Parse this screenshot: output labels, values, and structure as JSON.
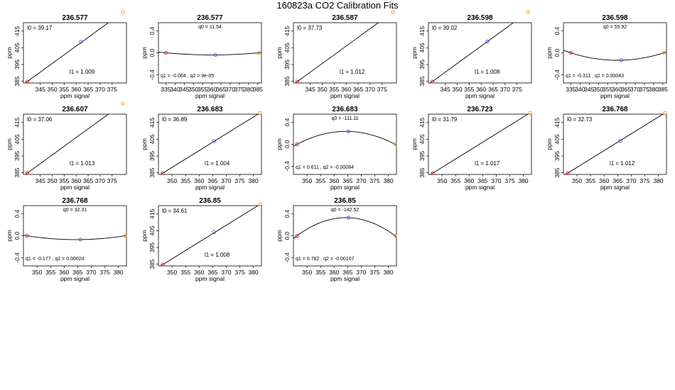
{
  "figure_title": "160823a   CO2 Calibration Fits",
  "chart_data": [
    {
      "type": "line",
      "fit": "linear",
      "title": "236.577",
      "xlabel": "ppm signal",
      "ylabel": "ppm",
      "xlim": [
        338,
        381
      ],
      "xticks": [
        345,
        350,
        355,
        360,
        365,
        370,
        375
      ],
      "ylim": [
        384,
        420
      ],
      "yticks": [
        385,
        395,
        405,
        415
      ],
      "points": [
        {
          "x": 339.6,
          "y": 384.8,
          "color": "#e41a1c"
        },
        {
          "x": 362.0,
          "y": 408.5,
          "color": "#7b3fe4"
        },
        {
          "x": 379.5,
          "y": 426.3,
          "color": "#ff8c00"
        }
      ],
      "labels": [
        {
          "id": "l0",
          "text": "l0 =  39.17",
          "pos": "top-left"
        },
        {
          "id": "l1",
          "text": "l1 =  1.009",
          "pos": "bottom-center"
        }
      ]
    },
    {
      "type": "line",
      "fit": "quadratic",
      "title": "236.577",
      "xlabel": "ppm signal",
      "ylabel": "ppm",
      "xlim": [
        331,
        387
      ],
      "xticks": [
        335,
        340,
        345,
        350,
        355,
        360,
        365,
        370,
        375,
        380,
        385
      ],
      "ylim": [
        -0.55,
        0.55
      ],
      "yticks": [
        -0.4,
        0.0,
        0.4
      ],
      "points": [
        {
          "x": 335.0,
          "y": 0.0,
          "color": "#e41a1c"
        },
        {
          "x": 362.0,
          "y": -0.038,
          "color": "#7b3fe4"
        },
        {
          "x": 385.5,
          "y": 0.0,
          "color": "#ff8c00"
        }
      ],
      "labels": [
        {
          "id": "q0",
          "text": "q0 =  11.54",
          "pos": "top-center"
        },
        {
          "id": "q12",
          "text": "q1 =  -0.064 , q2 =  9e-05",
          "pos": "bottom-left"
        }
      ]
    },
    {
      "type": "line",
      "fit": "linear",
      "title": "236.587",
      "xlabel": "ppm signal",
      "ylabel": "ppm",
      "xlim": [
        338,
        381
      ],
      "xticks": [
        345,
        350,
        355,
        360,
        365,
        370,
        375
      ],
      "ylim": [
        384,
        420
      ],
      "yticks": [
        385,
        395,
        405,
        415
      ],
      "points": [
        {
          "x": 339.6,
          "y": 384.8,
          "color": "#e41a1c"
        },
        {
          "x": 379.5,
          "y": 426.3,
          "color": "#ff8c00"
        }
      ],
      "labels": [
        {
          "id": "l0",
          "text": "l0 =  37.73",
          "pos": "top-left"
        },
        {
          "id": "l1",
          "text": "l1 =  1.012",
          "pos": "bottom-center"
        }
      ]
    },
    {
      "type": "line",
      "fit": "linear",
      "title": "236.598",
      "xlabel": "ppm signal",
      "ylabel": "ppm",
      "xlim": [
        338,
        381
      ],
      "xticks": [
        345,
        350,
        355,
        360,
        365,
        370,
        375
      ],
      "ylim": [
        384,
        420
      ],
      "yticks": [
        385,
        395,
        405,
        415
      ],
      "points": [
        {
          "x": 339.6,
          "y": 384.8,
          "color": "#e41a1c"
        },
        {
          "x": 362.6,
          "y": 408.8,
          "color": "#7b3fe4"
        },
        {
          "x": 379.5,
          "y": 426.3,
          "color": "#ff8c00"
        }
      ],
      "labels": [
        {
          "id": "l0",
          "text": "l0 =  39.02",
          "pos": "top-left"
        },
        {
          "id": "l1",
          "text": "l1 =  1.008",
          "pos": "bottom-center"
        }
      ]
    },
    {
      "type": "line",
      "fit": "quadratic",
      "title": "236.598",
      "xlabel": "ppm signal",
      "ylabel": "ppm",
      "xlim": [
        331,
        387
      ],
      "xticks": [
        335,
        340,
        345,
        350,
        355,
        360,
        365,
        370,
        375,
        380,
        385
      ],
      "ylim": [
        -0.55,
        0.55
      ],
      "yticks": [
        -0.4,
        0.0,
        0.4
      ],
      "points": [
        {
          "x": 335.0,
          "y": 0.0,
          "color": "#e41a1c"
        },
        {
          "x": 362.5,
          "y": -0.135,
          "color": "#7b3fe4"
        },
        {
          "x": 385.5,
          "y": 0.0,
          "color": "#ff8c00"
        }
      ],
      "labels": [
        {
          "id": "q0",
          "text": "q0 =  55.92",
          "pos": "top-center"
        },
        {
          "id": "q12",
          "text": "q1 =  -0.311 , q2 =  0.00043",
          "pos": "bottom-left"
        }
      ]
    },
    {
      "type": "line",
      "fit": "linear",
      "title": "236.607",
      "xlabel": "ppm signal",
      "ylabel": "ppm",
      "xlim": [
        338,
        381
      ],
      "xticks": [
        345,
        350,
        355,
        360,
        365,
        370,
        375
      ],
      "ylim": [
        384,
        420
      ],
      "yticks": [
        385,
        395,
        405,
        415
      ],
      "points": [
        {
          "x": 339.6,
          "y": 384.8,
          "color": "#e41a1c"
        },
        {
          "x": 379.5,
          "y": 426.3,
          "color": "#ff8c00"
        }
      ],
      "labels": [
        {
          "id": "l0",
          "text": "l0 =  37.06",
          "pos": "top-left"
        },
        {
          "id": "l1",
          "text": "l1 =  1.013",
          "pos": "bottom-center"
        }
      ]
    },
    {
      "type": "line",
      "fit": "linear",
      "title": "236.683",
      "xlabel": "ppm signal",
      "ylabel": "ppm",
      "xlim": [
        345,
        383
      ],
      "xticks": [
        350,
        355,
        360,
        365,
        370,
        375,
        380
      ],
      "ylim": [
        384,
        420
      ],
      "yticks": [
        385,
        395,
        405,
        415
      ],
      "points": [
        {
          "x": 346.6,
          "y": 384.8,
          "color": "#e41a1c"
        },
        {
          "x": 365.5,
          "y": 404.0,
          "color": "#7b3fe4"
        },
        {
          "x": 382.5,
          "y": 420.8,
          "color": "#ff8c00"
        }
      ],
      "labels": [
        {
          "id": "l0",
          "text": "l0 =  36.89",
          "pos": "top-left"
        },
        {
          "id": "l1",
          "text": "l1 =  1.004",
          "pos": "bottom-center"
        }
      ]
    },
    {
      "type": "line",
      "fit": "quadratic",
      "title": "236.683",
      "xlabel": "ppm signal",
      "ylabel": "ppm",
      "xlim": [
        345,
        383
      ],
      "xticks": [
        350,
        355,
        360,
        365,
        370,
        375,
        380
      ],
      "ylim": [
        -0.55,
        0.55
      ],
      "yticks": [
        -0.4,
        0.0,
        0.4
      ],
      "points": [
        {
          "x": 346.3,
          "y": 0.0,
          "color": "#e41a1c"
        },
        {
          "x": 365.3,
          "y": 0.235,
          "color": "#7b3fe4"
        },
        {
          "x": 382.5,
          "y": 0.0,
          "color": "#ff8c00"
        }
      ],
      "labels": [
        {
          "id": "q0",
          "text": "q0 =  -111.11",
          "pos": "top-center"
        },
        {
          "id": "q12",
          "text": "q1 =  0.611 , q2 =  -0.00084",
          "pos": "bottom-left"
        }
      ]
    },
    {
      "type": "line",
      "fit": "linear",
      "title": "236.723",
      "xlabel": "ppm signal",
      "ylabel": "ppm",
      "xlim": [
        345,
        383
      ],
      "xticks": [
        350,
        355,
        360,
        365,
        370,
        375,
        380
      ],
      "ylim": [
        384,
        420
      ],
      "yticks": [
        385,
        395,
        405,
        415
      ],
      "points": [
        {
          "x": 346.6,
          "y": 384.8,
          "color": "#e41a1c"
        },
        {
          "x": 382.5,
          "y": 420.8,
          "color": "#ff8c00"
        }
      ],
      "labels": [
        {
          "id": "l0",
          "text": "l0 =  31.79",
          "pos": "top-left"
        },
        {
          "id": "l1",
          "text": "l1 =  1.017",
          "pos": "bottom-center"
        }
      ]
    },
    {
      "type": "line",
      "fit": "linear",
      "title": "236.768",
      "xlabel": "ppm signal",
      "ylabel": "ppm",
      "xlim": [
        345,
        383
      ],
      "xticks": [
        350,
        355,
        360,
        365,
        370,
        375,
        380
      ],
      "ylim": [
        384,
        420
      ],
      "yticks": [
        385,
        395,
        405,
        415
      ],
      "points": [
        {
          "x": 346.6,
          "y": 384.8,
          "color": "#e41a1c"
        },
        {
          "x": 366.0,
          "y": 404.0,
          "color": "#7b3fe4"
        },
        {
          "x": 382.5,
          "y": 420.8,
          "color": "#ff8c00"
        }
      ],
      "labels": [
        {
          "id": "l0",
          "text": "l0 =  32.73",
          "pos": "top-left"
        },
        {
          "id": "l1",
          "text": "l1 =  1.012",
          "pos": "bottom-center"
        }
      ]
    },
    {
      "type": "line",
      "fit": "quadratic",
      "title": "236.768",
      "xlabel": "ppm signal",
      "ylabel": "ppm",
      "xlim": [
        345,
        383
      ],
      "xticks": [
        350,
        355,
        360,
        365,
        370,
        375,
        380
      ],
      "ylim": [
        -0.55,
        0.55
      ],
      "yticks": [
        -0.4,
        0.0,
        0.4
      ],
      "points": [
        {
          "x": 346.3,
          "y": 0.0,
          "color": "#e41a1c"
        },
        {
          "x": 366.0,
          "y": -0.07,
          "color": "#7b3fe4"
        },
        {
          "x": 382.5,
          "y": 0.0,
          "color": "#ff8c00"
        }
      ],
      "labels": [
        {
          "id": "q0",
          "text": "q0 =  32.31",
          "pos": "top-center"
        },
        {
          "id": "q12",
          "text": "q1 =  -0.177 , q2 =  0.00024",
          "pos": "bottom-left"
        }
      ]
    },
    {
      "type": "line",
      "fit": "linear",
      "title": "236.85",
      "xlabel": "ppm signal",
      "ylabel": "ppm",
      "xlim": [
        345,
        383
      ],
      "xticks": [
        350,
        355,
        360,
        365,
        370,
        375,
        380
      ],
      "ylim": [
        384,
        420
      ],
      "yticks": [
        385,
        395,
        405,
        415
      ],
      "points": [
        {
          "x": 346.6,
          "y": 384.8,
          "color": "#e41a1c"
        },
        {
          "x": 365.5,
          "y": 404.2,
          "color": "#7b3fe4"
        },
        {
          "x": 382.5,
          "y": 420.8,
          "color": "#ff8c00"
        }
      ],
      "labels": [
        {
          "id": "l0",
          "text": "l0 =  34.61",
          "pos": "top-left"
        },
        {
          "id": "l1",
          "text": "l1 =  1.008",
          "pos": "bottom-center"
        }
      ]
    },
    {
      "type": "line",
      "fit": "quadratic",
      "title": "236.85",
      "xlabel": "ppm signal",
      "ylabel": "ppm",
      "xlim": [
        345,
        383
      ],
      "xticks": [
        350,
        355,
        360,
        365,
        370,
        375,
        380
      ],
      "ylim": [
        -0.55,
        0.55
      ],
      "yticks": [
        -0.4,
        0.0,
        0.4
      ],
      "points": [
        {
          "x": 346.3,
          "y": 0.0,
          "color": "#e41a1c"
        },
        {
          "x": 365.3,
          "y": 0.33,
          "color": "#7b3fe4"
        },
        {
          "x": 382.5,
          "y": 0.0,
          "color": "#ff8c00"
        }
      ],
      "labels": [
        {
          "id": "q0",
          "text": "q0 =  -142.52",
          "pos": "top-center"
        },
        {
          "id": "q12",
          "text": "q1 =  0.782 , q2 =  -0.00107",
          "pos": "bottom-left"
        }
      ]
    }
  ]
}
